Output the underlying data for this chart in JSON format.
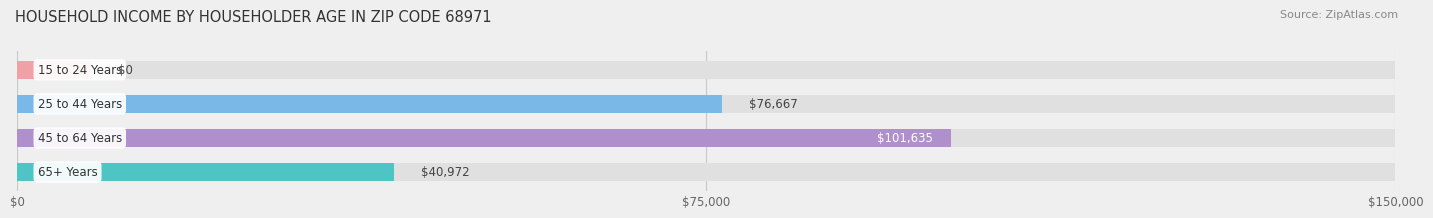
{
  "title": "HOUSEHOLD INCOME BY HOUSEHOLDER AGE IN ZIP CODE 68971",
  "source": "Source: ZipAtlas.com",
  "categories": [
    "15 to 24 Years",
    "25 to 44 Years",
    "45 to 64 Years",
    "65+ Years"
  ],
  "values": [
    0,
    76667,
    101635,
    40972
  ],
  "bar_colors": [
    "#f2a0a8",
    "#7ab8e8",
    "#b090cc",
    "#4fc4c4"
  ],
  "background_color": "#efefef",
  "bar_bg_color": "#e0e0e0",
  "xlim": [
    0,
    150000
  ],
  "xticks": [
    0,
    75000,
    150000
  ],
  "xtick_labels": [
    "$0",
    "$75,000",
    "$150,000"
  ],
  "value_labels": [
    "$0",
    "$76,667",
    "$101,635",
    "$40,972"
  ],
  "bar_height": 0.52,
  "title_fontsize": 10.5,
  "source_fontsize": 8,
  "label_fontsize": 8.5,
  "value_fontsize": 8.5,
  "tick_fontsize": 8.5
}
